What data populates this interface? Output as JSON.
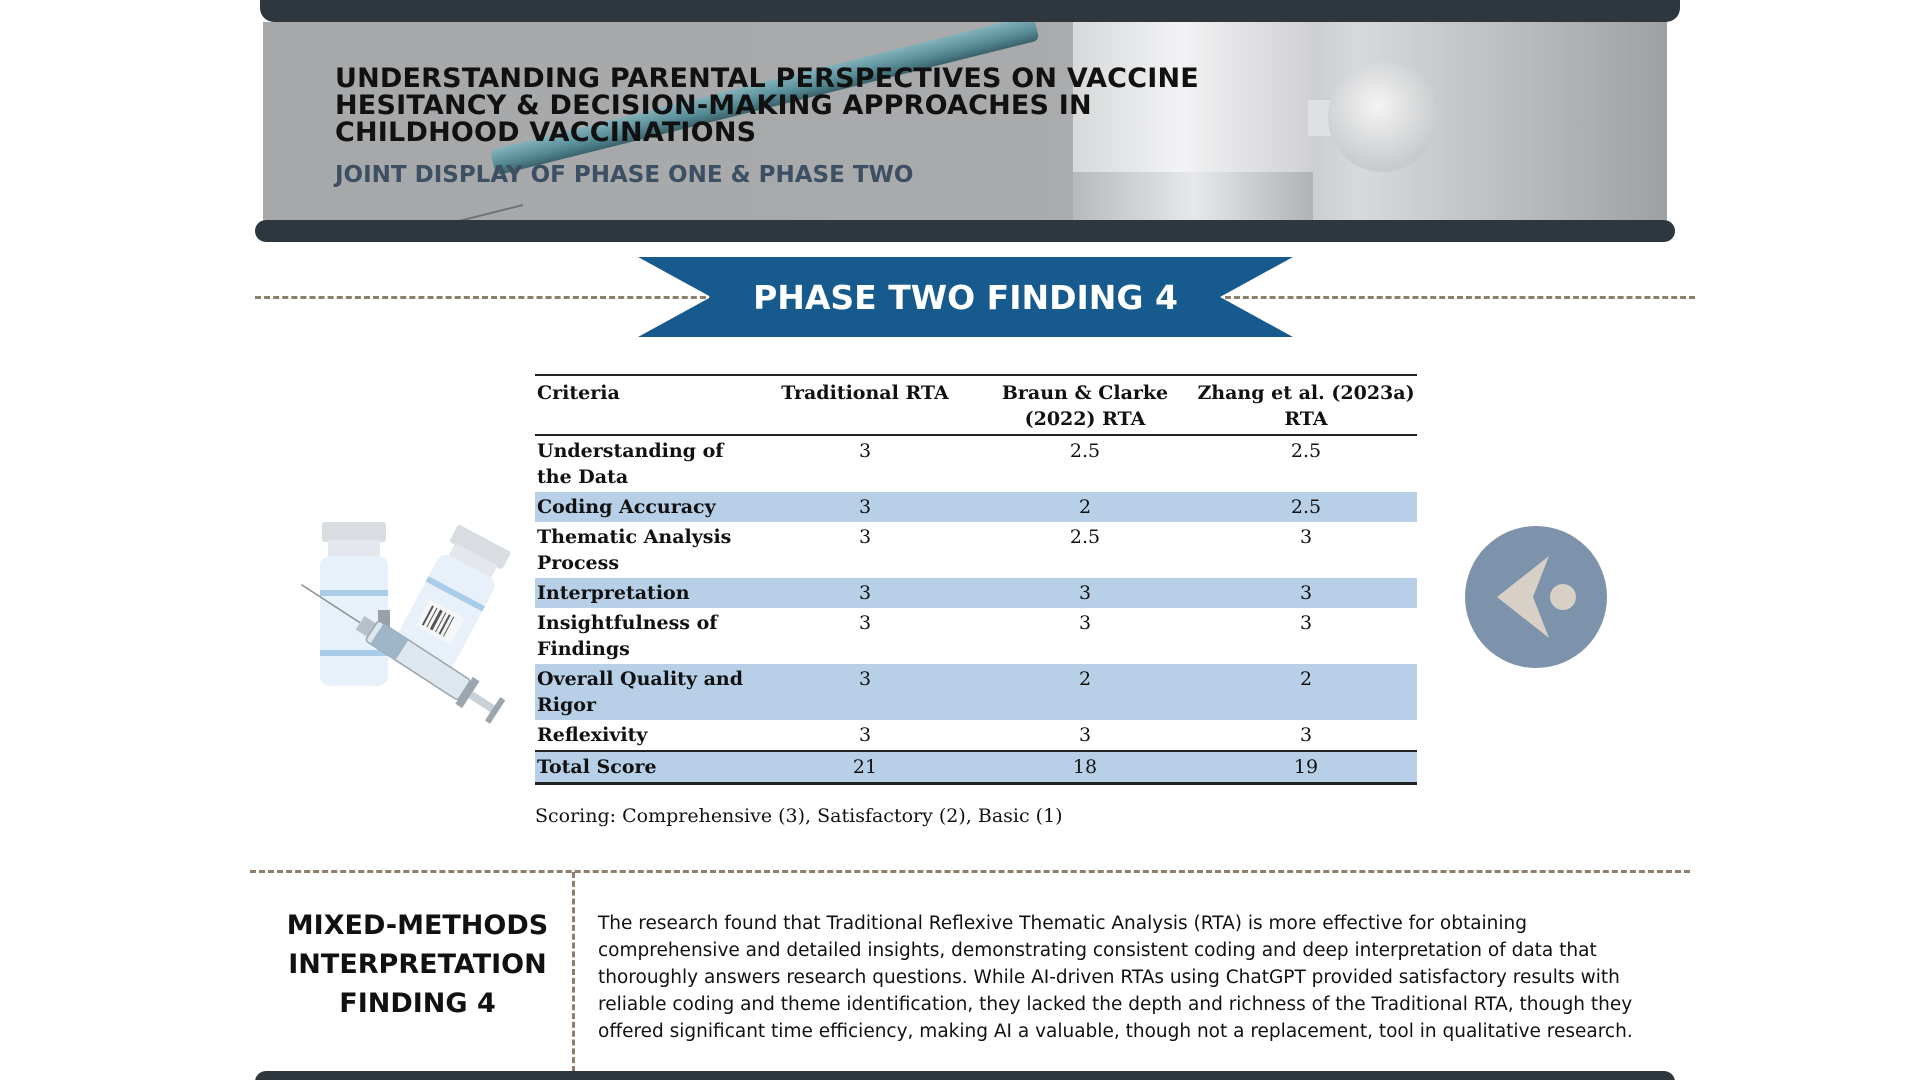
{
  "header": {
    "title": "Understanding Parental Perspectives on Vaccine Hesitancy & Decision-Making Approaches in Childhood Vaccinations",
    "subtitle": "Joint Display of Phase One & Phase Two"
  },
  "ribbon": {
    "label": "PHASE TWO FINDING 4",
    "color": "#175a8e"
  },
  "table": {
    "headers": [
      "Criteria",
      "Traditional RTA",
      "Braun & Clarke (2022) RTA",
      "Zhang et al. (2023a) RTA"
    ],
    "rows": [
      {
        "criteria": "Understanding of the Data",
        "traditional": "3",
        "braun_clarke": "2.5",
        "zhang": "2.5",
        "shaded": false
      },
      {
        "criteria": "Coding Accuracy",
        "traditional": "3",
        "braun_clarke": "2",
        "zhang": "2.5",
        "shaded": true
      },
      {
        "criteria": "Thematic Analysis Process",
        "traditional": "3",
        "braun_clarke": "2.5",
        "zhang": "3",
        "shaded": false
      },
      {
        "criteria": "Interpretation",
        "traditional": "3",
        "braun_clarke": "3",
        "zhang": "3",
        "shaded": true
      },
      {
        "criteria": "Insightfulness of Findings",
        "traditional": "3",
        "braun_clarke": "3",
        "zhang": "3",
        "shaded": false
      },
      {
        "criteria": "Overall Quality and Rigor",
        "traditional": "3",
        "braun_clarke": "2",
        "zhang": "2",
        "shaded": true
      },
      {
        "criteria": "Reflexivity",
        "traditional": "3",
        "braun_clarke": "3",
        "zhang": "3",
        "shaded": false
      }
    ],
    "total": {
      "criteria": "Total Score",
      "traditional": "21",
      "braun_clarke": "18",
      "zhang": "19"
    },
    "shade_color": "#b7d0e7",
    "scoring_note": "Scoring: Comprehensive (3), Satisfactory (2), Basic (1)"
  },
  "interpretation": {
    "title": "MIXED-METHODS INTERPRETATION FINDING 4",
    "body": "The research found that Traditional Reflexive Thematic Analysis (RTA) is more effective for obtaining comprehensive and detailed insights, demonstrating consistent coding and deep interpretation of data that thoroughly answers research questions. While AI-driven RTAs using ChatGPT provided satisfactory results with reliable coding and theme identification, they lacked the depth and richness of the Traditional RTA, though they offered significant time efficiency, making AI a valuable, though not a replacement, tool in qualitative research."
  },
  "icons": {
    "illustration": "vaccine-vials-syringe-icon",
    "back_button": "back-arrow-icon"
  },
  "colors": {
    "dark_bar": "#2e373d",
    "dash": "#8d7f69",
    "back_button": "#7d93ab"
  }
}
